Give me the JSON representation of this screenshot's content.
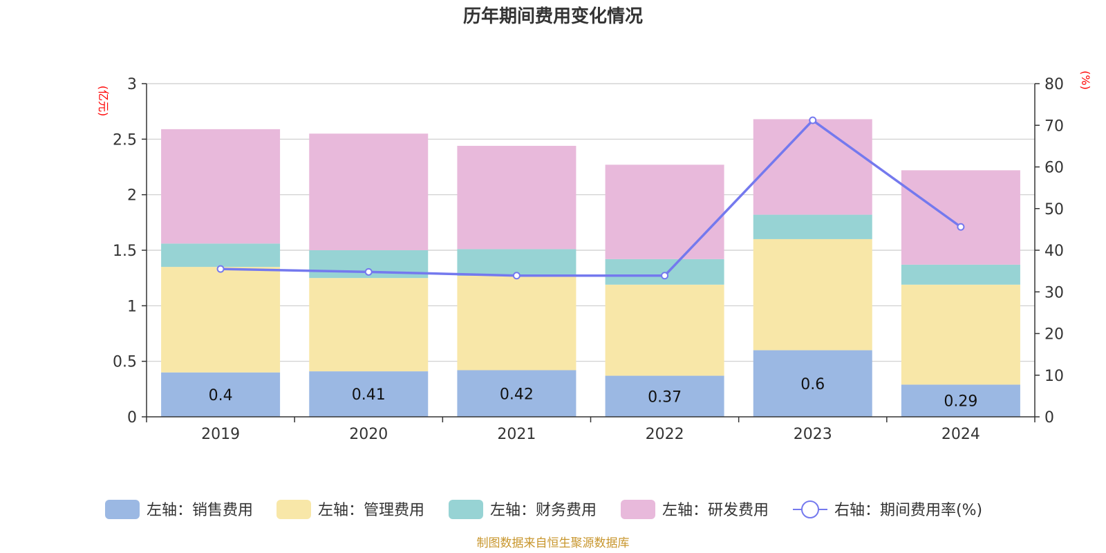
{
  "chart_data": {
    "type": "bar",
    "title": "历年期间费用变化情况",
    "categories": [
      "2019",
      "2020",
      "2021",
      "2022",
      "2023",
      "2024"
    ],
    "left_axis": {
      "unit": "(亿元)",
      "ylim": [
        0,
        3
      ],
      "ticks": [
        "0",
        "0.5",
        "1",
        "1.5",
        "2",
        "2.5",
        "3"
      ]
    },
    "right_axis": {
      "unit": "(%)",
      "ylim": [
        0,
        80
      ],
      "ticks": [
        "0",
        "10",
        "20",
        "30",
        "40",
        "50",
        "60",
        "70",
        "80"
      ]
    },
    "series": [
      {
        "name": "左轴：销售费用",
        "type": "bar",
        "stack": true,
        "color": "#9bb8e3",
        "values": [
          0.4,
          0.41,
          0.42,
          0.37,
          0.6,
          0.29
        ],
        "labels": [
          "0.4",
          "0.41",
          "0.42",
          "0.37",
          "0.6",
          "0.29"
        ]
      },
      {
        "name": "左轴：管理费用",
        "type": "bar",
        "stack": true,
        "color": "#f8e7a8",
        "values": [
          0.95,
          0.84,
          0.85,
          0.82,
          1.0,
          0.9
        ]
      },
      {
        "name": "左轴：财务费用",
        "type": "bar",
        "stack": true,
        "color": "#97d3d4",
        "values": [
          0.21,
          0.25,
          0.24,
          0.23,
          0.22,
          0.18
        ]
      },
      {
        "name": "左轴：研发费用",
        "type": "bar",
        "stack": true,
        "color": "#e8b9db",
        "values": [
          1.03,
          1.05,
          0.93,
          0.85,
          0.86,
          0.85
        ]
      },
      {
        "name": "右轴：期间费用率(%)",
        "type": "line",
        "axis": "right",
        "color": "#7479ee",
        "values": [
          35.5,
          34.8,
          33.9,
          33.9,
          71.2,
          45.6
        ]
      }
    ],
    "grid": true,
    "legend": "bottom"
  },
  "source_note": "制图数据来自恒生聚源数据库"
}
